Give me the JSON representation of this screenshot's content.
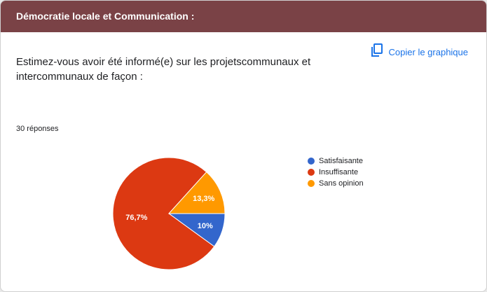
{
  "header": {
    "title": "Démocratie locale et Communication :"
  },
  "copy_button": {
    "label": "Copier le graphique",
    "icon": "copy-icon"
  },
  "question": {
    "text": "Estimez-vous avoir été informé(e) sur les projetscommunaux et intercommunaux de façon :"
  },
  "responses_count": "30 réponses",
  "colors": {
    "header": "#7a4246",
    "accent": "#1a73e8"
  },
  "chart_data": {
    "type": "pie",
    "categories": [
      "Satisfaisante",
      "Insuffisante",
      "Sans opinion"
    ],
    "values": [
      10,
      76.7,
      13.3
    ],
    "labels": [
      "10%",
      "76,7%",
      "13,3%"
    ],
    "colors": [
      "#3366cc",
      "#dc3912",
      "#ff9900"
    ],
    "legend": "right"
  }
}
